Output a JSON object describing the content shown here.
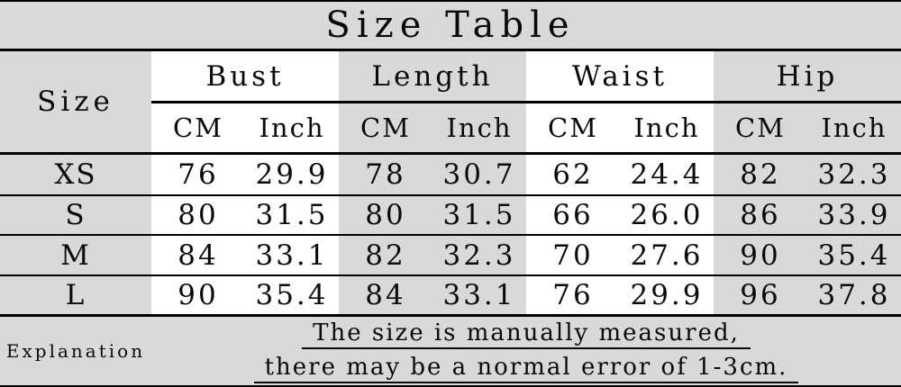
{
  "colors": {
    "background": "#d9d9d9",
    "stripe": "#ffffff",
    "rule": "#000000",
    "text": "#0a0a0a"
  },
  "chart_data": {
    "type": "table",
    "title": "Size Table",
    "header": {
      "size_label": "Size",
      "groups": [
        "Bust",
        "Length",
        "Waist",
        "Hip"
      ],
      "units": [
        "CM",
        "Inch"
      ]
    },
    "columns": [
      "Size",
      "Bust CM",
      "Bust Inch",
      "Length CM",
      "Length Inch",
      "Waist CM",
      "Waist Inch",
      "Hip CM",
      "Hip Inch"
    ],
    "rows": [
      [
        "XS",
        "76",
        "29.9",
        "78",
        "30.7",
        "62",
        "24.4",
        "82",
        "32.3"
      ],
      [
        "S",
        "80",
        "31.5",
        "80",
        "31.5",
        "66",
        "26.0",
        "86",
        "33.9"
      ],
      [
        "M",
        "84",
        "33.1",
        "82",
        "32.3",
        "70",
        "27.6",
        "90",
        "35.4"
      ],
      [
        "L",
        "90",
        "35.4",
        "84",
        "33.1",
        "76",
        "29.9",
        "96",
        "37.8"
      ]
    ],
    "footer": {
      "label": "Explanation",
      "note_lines": [
        "The size is manually measured,",
        "there may be a normal error of 1-3cm."
      ]
    }
  }
}
